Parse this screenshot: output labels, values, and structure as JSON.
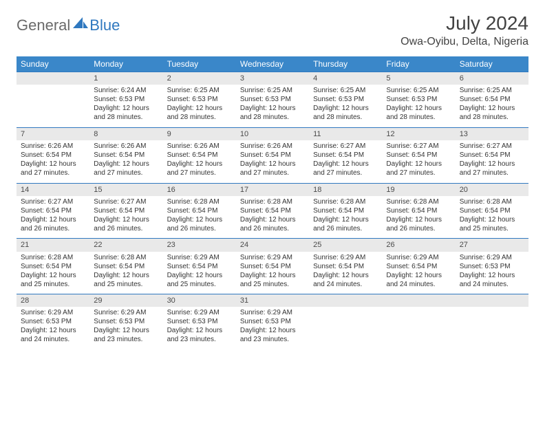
{
  "logo": {
    "general": "General",
    "blue": "Blue"
  },
  "title": "July 2024",
  "location": "Owa-Oyibu, Delta, Nigeria",
  "colors": {
    "header_bg": "#3a87c9",
    "header_text": "#ffffff",
    "daynum_bg": "#e9e9e9",
    "border": "#2f78bf",
    "logo_gray": "#6a6a6a",
    "logo_blue": "#2f78bf"
  },
  "weekdays": [
    "Sunday",
    "Monday",
    "Tuesday",
    "Wednesday",
    "Thursday",
    "Friday",
    "Saturday"
  ],
  "weeks": [
    [
      {
        "day": "",
        "sunrise": "",
        "sunset": "",
        "daylight": ""
      },
      {
        "day": "1",
        "sunrise": "Sunrise: 6:24 AM",
        "sunset": "Sunset: 6:53 PM",
        "daylight": "Daylight: 12 hours and 28 minutes."
      },
      {
        "day": "2",
        "sunrise": "Sunrise: 6:25 AM",
        "sunset": "Sunset: 6:53 PM",
        "daylight": "Daylight: 12 hours and 28 minutes."
      },
      {
        "day": "3",
        "sunrise": "Sunrise: 6:25 AM",
        "sunset": "Sunset: 6:53 PM",
        "daylight": "Daylight: 12 hours and 28 minutes."
      },
      {
        "day": "4",
        "sunrise": "Sunrise: 6:25 AM",
        "sunset": "Sunset: 6:53 PM",
        "daylight": "Daylight: 12 hours and 28 minutes."
      },
      {
        "day": "5",
        "sunrise": "Sunrise: 6:25 AM",
        "sunset": "Sunset: 6:53 PM",
        "daylight": "Daylight: 12 hours and 28 minutes."
      },
      {
        "day": "6",
        "sunrise": "Sunrise: 6:25 AM",
        "sunset": "Sunset: 6:54 PM",
        "daylight": "Daylight: 12 hours and 28 minutes."
      }
    ],
    [
      {
        "day": "7",
        "sunrise": "Sunrise: 6:26 AM",
        "sunset": "Sunset: 6:54 PM",
        "daylight": "Daylight: 12 hours and 27 minutes."
      },
      {
        "day": "8",
        "sunrise": "Sunrise: 6:26 AM",
        "sunset": "Sunset: 6:54 PM",
        "daylight": "Daylight: 12 hours and 27 minutes."
      },
      {
        "day": "9",
        "sunrise": "Sunrise: 6:26 AM",
        "sunset": "Sunset: 6:54 PM",
        "daylight": "Daylight: 12 hours and 27 minutes."
      },
      {
        "day": "10",
        "sunrise": "Sunrise: 6:26 AM",
        "sunset": "Sunset: 6:54 PM",
        "daylight": "Daylight: 12 hours and 27 minutes."
      },
      {
        "day": "11",
        "sunrise": "Sunrise: 6:27 AM",
        "sunset": "Sunset: 6:54 PM",
        "daylight": "Daylight: 12 hours and 27 minutes."
      },
      {
        "day": "12",
        "sunrise": "Sunrise: 6:27 AM",
        "sunset": "Sunset: 6:54 PM",
        "daylight": "Daylight: 12 hours and 27 minutes."
      },
      {
        "day": "13",
        "sunrise": "Sunrise: 6:27 AM",
        "sunset": "Sunset: 6:54 PM",
        "daylight": "Daylight: 12 hours and 27 minutes."
      }
    ],
    [
      {
        "day": "14",
        "sunrise": "Sunrise: 6:27 AM",
        "sunset": "Sunset: 6:54 PM",
        "daylight": "Daylight: 12 hours and 26 minutes."
      },
      {
        "day": "15",
        "sunrise": "Sunrise: 6:27 AM",
        "sunset": "Sunset: 6:54 PM",
        "daylight": "Daylight: 12 hours and 26 minutes."
      },
      {
        "day": "16",
        "sunrise": "Sunrise: 6:28 AM",
        "sunset": "Sunset: 6:54 PM",
        "daylight": "Daylight: 12 hours and 26 minutes."
      },
      {
        "day": "17",
        "sunrise": "Sunrise: 6:28 AM",
        "sunset": "Sunset: 6:54 PM",
        "daylight": "Daylight: 12 hours and 26 minutes."
      },
      {
        "day": "18",
        "sunrise": "Sunrise: 6:28 AM",
        "sunset": "Sunset: 6:54 PM",
        "daylight": "Daylight: 12 hours and 26 minutes."
      },
      {
        "day": "19",
        "sunrise": "Sunrise: 6:28 AM",
        "sunset": "Sunset: 6:54 PM",
        "daylight": "Daylight: 12 hours and 26 minutes."
      },
      {
        "day": "20",
        "sunrise": "Sunrise: 6:28 AM",
        "sunset": "Sunset: 6:54 PM",
        "daylight": "Daylight: 12 hours and 25 minutes."
      }
    ],
    [
      {
        "day": "21",
        "sunrise": "Sunrise: 6:28 AM",
        "sunset": "Sunset: 6:54 PM",
        "daylight": "Daylight: 12 hours and 25 minutes."
      },
      {
        "day": "22",
        "sunrise": "Sunrise: 6:28 AM",
        "sunset": "Sunset: 6:54 PM",
        "daylight": "Daylight: 12 hours and 25 minutes."
      },
      {
        "day": "23",
        "sunrise": "Sunrise: 6:29 AM",
        "sunset": "Sunset: 6:54 PM",
        "daylight": "Daylight: 12 hours and 25 minutes."
      },
      {
        "day": "24",
        "sunrise": "Sunrise: 6:29 AM",
        "sunset": "Sunset: 6:54 PM",
        "daylight": "Daylight: 12 hours and 25 minutes."
      },
      {
        "day": "25",
        "sunrise": "Sunrise: 6:29 AM",
        "sunset": "Sunset: 6:54 PM",
        "daylight": "Daylight: 12 hours and 24 minutes."
      },
      {
        "day": "26",
        "sunrise": "Sunrise: 6:29 AM",
        "sunset": "Sunset: 6:54 PM",
        "daylight": "Daylight: 12 hours and 24 minutes."
      },
      {
        "day": "27",
        "sunrise": "Sunrise: 6:29 AM",
        "sunset": "Sunset: 6:53 PM",
        "daylight": "Daylight: 12 hours and 24 minutes."
      }
    ],
    [
      {
        "day": "28",
        "sunrise": "Sunrise: 6:29 AM",
        "sunset": "Sunset: 6:53 PM",
        "daylight": "Daylight: 12 hours and 24 minutes."
      },
      {
        "day": "29",
        "sunrise": "Sunrise: 6:29 AM",
        "sunset": "Sunset: 6:53 PM",
        "daylight": "Daylight: 12 hours and 23 minutes."
      },
      {
        "day": "30",
        "sunrise": "Sunrise: 6:29 AM",
        "sunset": "Sunset: 6:53 PM",
        "daylight": "Daylight: 12 hours and 23 minutes."
      },
      {
        "day": "31",
        "sunrise": "Sunrise: 6:29 AM",
        "sunset": "Sunset: 6:53 PM",
        "daylight": "Daylight: 12 hours and 23 minutes."
      },
      {
        "day": "",
        "sunrise": "",
        "sunset": "",
        "daylight": ""
      },
      {
        "day": "",
        "sunrise": "",
        "sunset": "",
        "daylight": ""
      },
      {
        "day": "",
        "sunrise": "",
        "sunset": "",
        "daylight": ""
      }
    ]
  ]
}
